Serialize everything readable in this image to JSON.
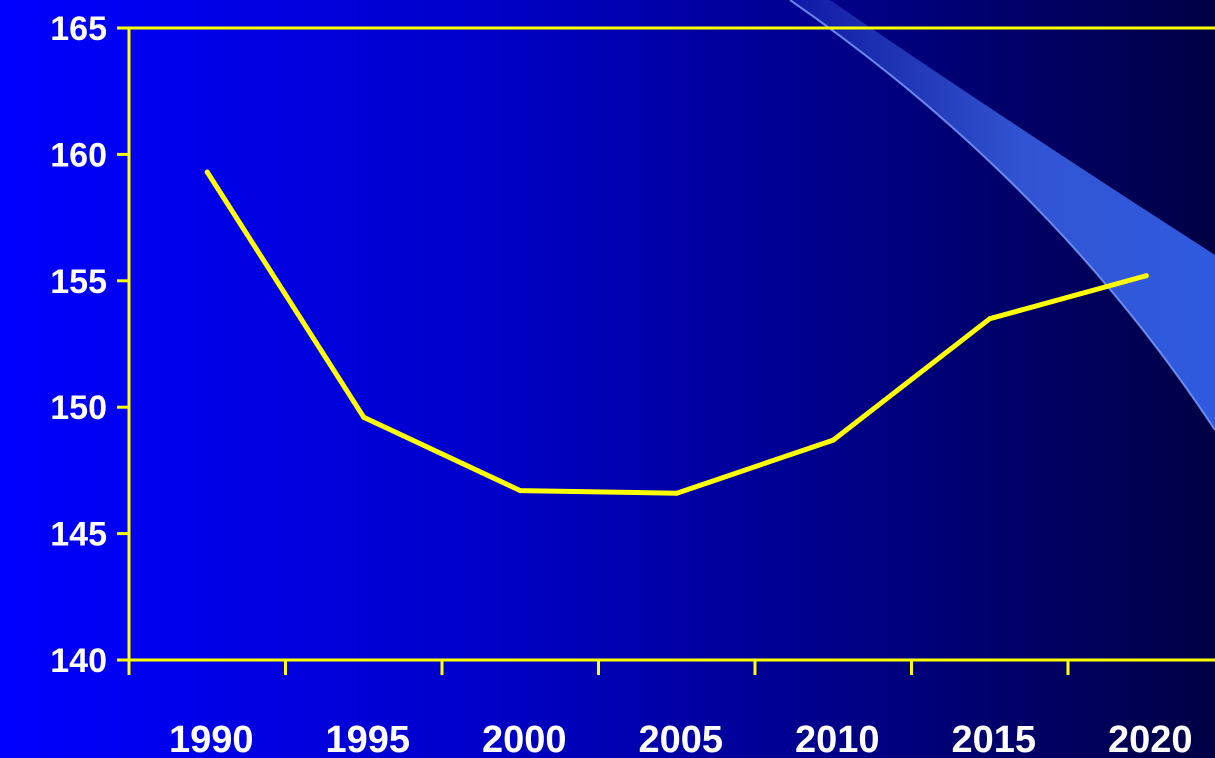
{
  "chart_data": {
    "type": "line",
    "title": "",
    "xlabel": "",
    "ylabel": "",
    "categories": [
      "1990",
      "1995",
      "2000",
      "2005",
      "2010",
      "2015",
      "2020"
    ],
    "series": [
      {
        "values": [
          159.3,
          149.6,
          146.7,
          146.6,
          148.7,
          153.5,
          155.2
        ]
      }
    ],
    "y_ticks": [
      "140",
      "145",
      "150",
      "155",
      "160",
      "165"
    ],
    "ylim": [
      140,
      165
    ],
    "grid": false,
    "legend": "none",
    "colors": {
      "line": "#ffff00",
      "axis": "#ffff00",
      "text": "#ffffff",
      "background_start": "#0000ff",
      "background_end": "#000045",
      "decor": "#4d7cff"
    }
  }
}
